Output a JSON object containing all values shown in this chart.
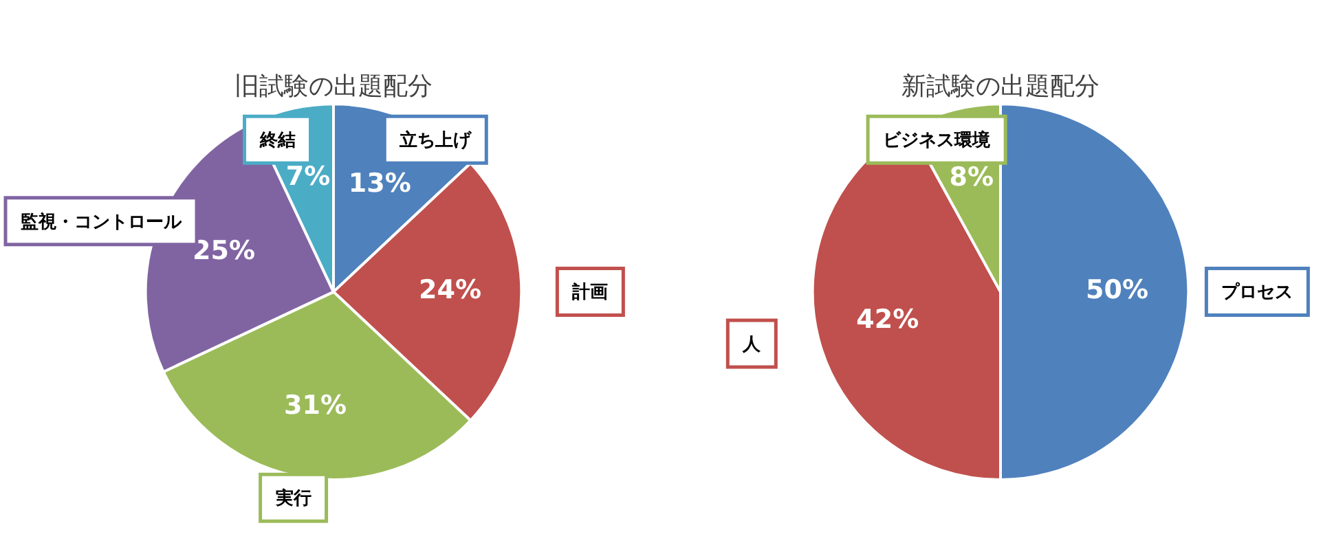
{
  "chart_data": [
    {
      "type": "pie",
      "title": "旧試験の出題配分",
      "categories": [
        "立ち上げ",
        "計画",
        "実行",
        "監視・コントロール",
        "終結"
      ],
      "values": [
        13,
        24,
        31,
        25,
        7
      ],
      "colors": [
        "#4f81bd",
        "#c0504d",
        "#9bbb59",
        "#8064a2",
        "#4bacc6"
      ],
      "value_labels": [
        "13%",
        "24%",
        "31%",
        "25%",
        "7%"
      ],
      "legend": false
    },
    {
      "type": "pie",
      "title": "新試験の出題配分",
      "categories": [
        "プロセス",
        "人",
        "ビジネス環境"
      ],
      "values": [
        50,
        42,
        8
      ],
      "colors": [
        "#4f81bd",
        "#c0504d",
        "#9bbb59"
      ],
      "value_labels": [
        "50%",
        "42%",
        "8%"
      ],
      "legend": false
    }
  ]
}
